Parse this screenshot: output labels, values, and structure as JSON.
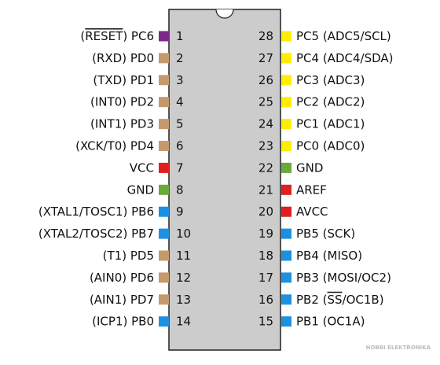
{
  "left_pins": [
    {
      "number": 1,
      "label": "(RESET) PC6",
      "overline": "RESET",
      "color": "#7b2a8c"
    },
    {
      "number": 2,
      "label": "(RXD) PD0",
      "color": "#c49a6c"
    },
    {
      "number": 3,
      "label": "(TXD) PD1",
      "color": "#c49a6c"
    },
    {
      "number": 4,
      "label": "(INT0) PD2",
      "color": "#c49a6c"
    },
    {
      "number": 5,
      "label": "(INT1) PD3",
      "color": "#c49a6c"
    },
    {
      "number": 6,
      "label": "(XCK/T0) PD4",
      "color": "#c49a6c"
    },
    {
      "number": 7,
      "label": "VCC",
      "color": "#e02020"
    },
    {
      "number": 8,
      "label": "GND",
      "color": "#6aaa3a"
    },
    {
      "number": 9,
      "label": "(XTAL1/TOSC1) PB6",
      "color": "#1e90e0"
    },
    {
      "number": 10,
      "label": "(XTAL2/TOSC2) PB7",
      "color": "#1e90e0"
    },
    {
      "number": 11,
      "label": "(T1) PD5",
      "color": "#c49a6c"
    },
    {
      "number": 12,
      "label": "(AIN0) PD6",
      "color": "#c49a6c"
    },
    {
      "number": 13,
      "label": "(AIN1) PD7",
      "color": "#c49a6c"
    },
    {
      "number": 14,
      "label": "(ICP1) PB0",
      "color": "#1e90e0"
    }
  ],
  "right_pins": [
    {
      "number": 28,
      "label": "PC5 (ADC5/SCL)",
      "color": "#ffee00"
    },
    {
      "number": 27,
      "label": "PC4 (ADC4/SDA)",
      "color": "#ffee00"
    },
    {
      "number": 26,
      "label": "PC3 (ADC3)",
      "color": "#ffee00"
    },
    {
      "number": 25,
      "label": "PC2 (ADC2)",
      "color": "#ffee00"
    },
    {
      "number": 24,
      "label": "PC1 (ADC1)",
      "color": "#ffee00"
    },
    {
      "number": 23,
      "label": "PC0 (ADC0)",
      "color": "#ffee00"
    },
    {
      "number": 22,
      "label": "GND",
      "color": "#6aaa3a"
    },
    {
      "number": 21,
      "label": "AREF",
      "color": "#e02020"
    },
    {
      "number": 20,
      "label": "AVCC",
      "color": "#e02020"
    },
    {
      "number": 19,
      "label": "PB5 (SCK)",
      "color": "#1e90e0"
    },
    {
      "number": 18,
      "label": "PB4 (MISO)",
      "color": "#1e90e0"
    },
    {
      "number": 17,
      "label": "PB3 (MOSI/OC2)",
      "color": "#1e90e0"
    },
    {
      "number": 16,
      "label": "PB2 (SS/OC1B)",
      "overline": "SS",
      "color": "#1e90e0"
    },
    {
      "number": 15,
      "label": "PB1 (OC1A)",
      "color": "#1e90e0"
    }
  ],
  "watermark": "HOBBI ELEKTRONIKA"
}
